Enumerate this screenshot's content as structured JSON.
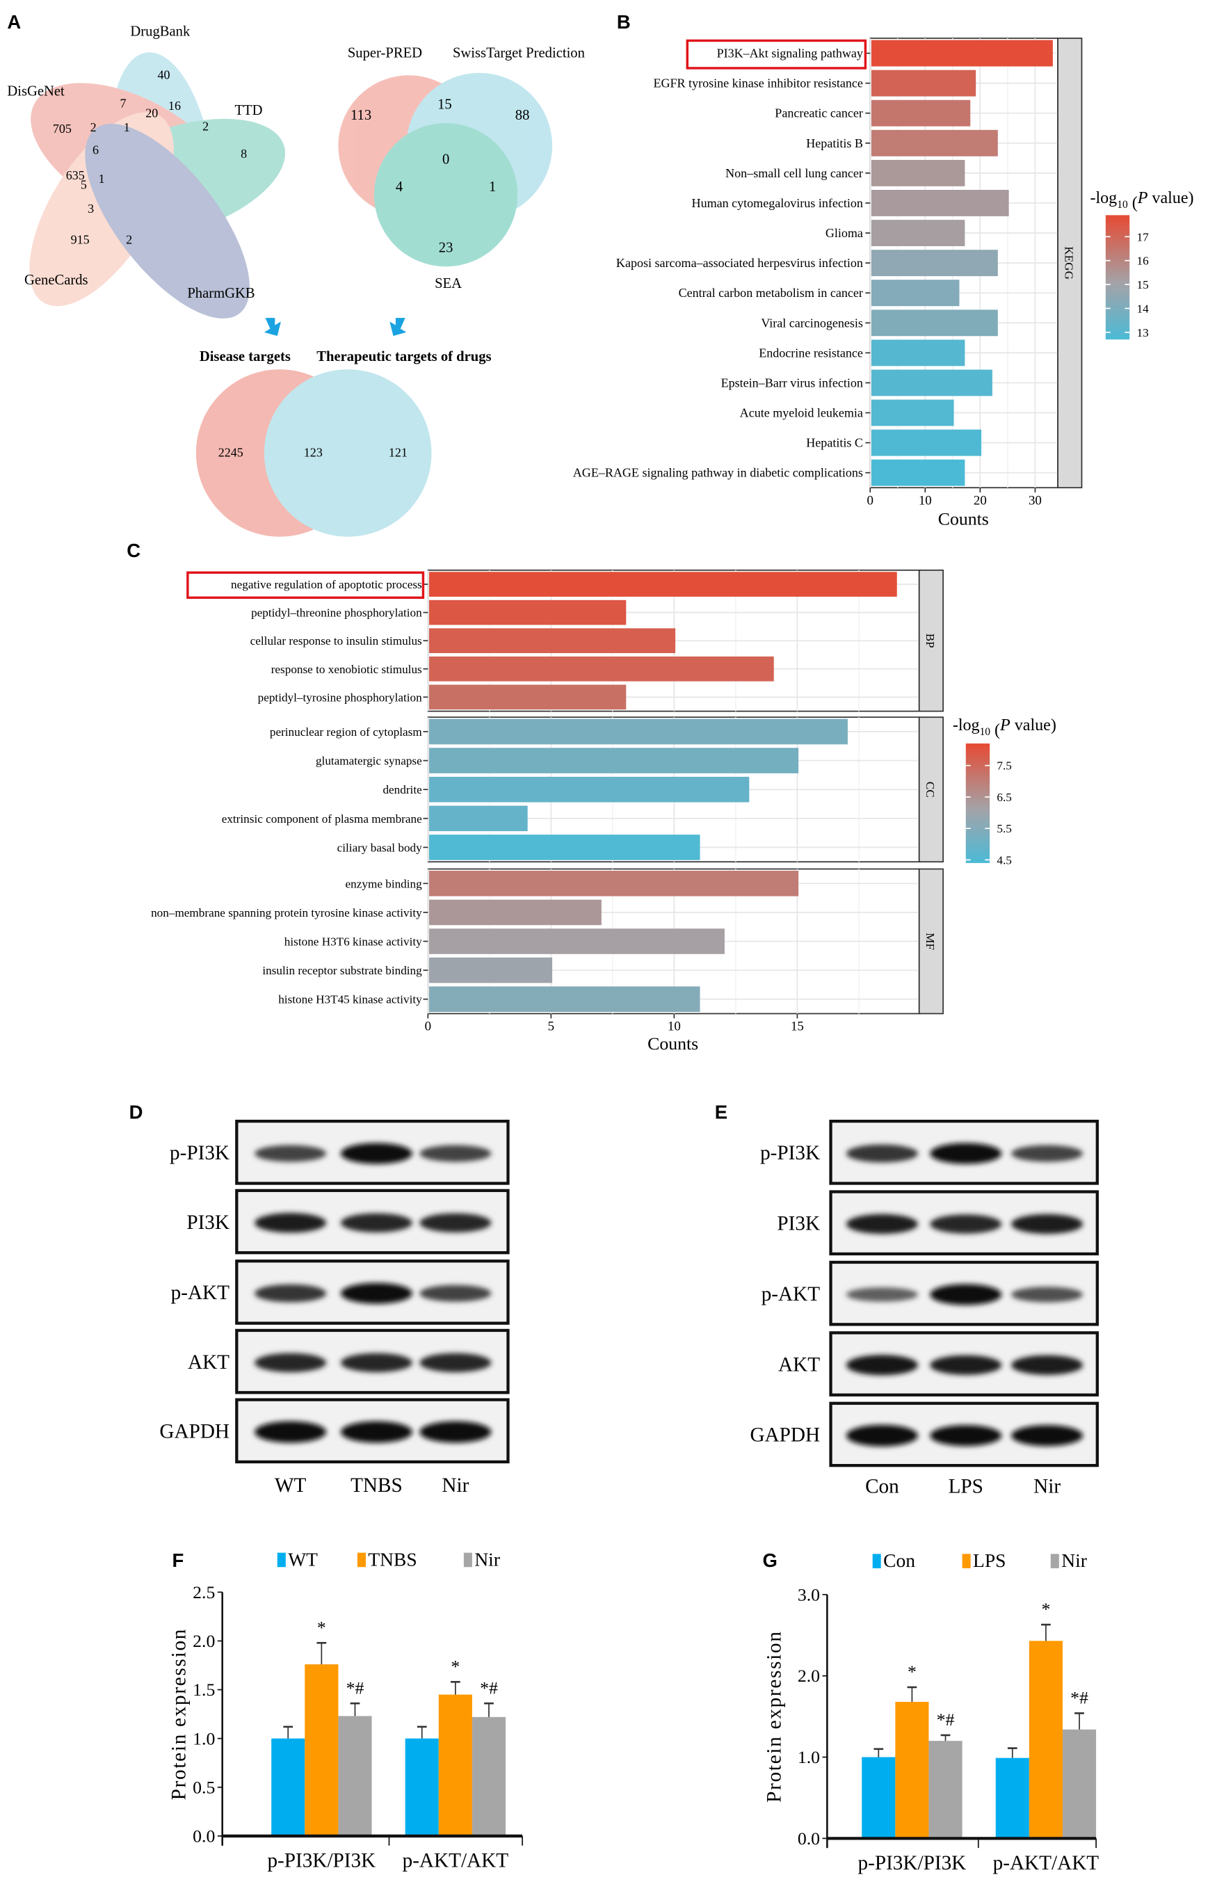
{
  "panels": {
    "a": "A",
    "b": "B",
    "c": "C",
    "d": "D",
    "e": "E",
    "f": "F",
    "g": "G"
  },
  "venn5": {
    "sets": [
      "DrugBank",
      "DisGeNet",
      "TTD",
      "GeneCards",
      "PharmGKB"
    ],
    "values": [
      "40",
      "7",
      "20",
      "16",
      "705",
      "2",
      "1",
      "2",
      "6",
      "8",
      "635",
      "1",
      "5",
      "3",
      "915",
      "2"
    ],
    "colors": [
      "#a8dbe8",
      "#f0a095",
      "#7fcfbf",
      "#f7c8b8",
      "#8f9bc0"
    ]
  },
  "venn3": {
    "sets": [
      "Super-PRED",
      "SwissTarget Prediction",
      "SEA"
    ],
    "values": [
      "113",
      "15",
      "88",
      "0",
      "4",
      "1",
      "23"
    ],
    "colors": [
      "#f2a59b",
      "#a8dce8",
      "#7ccfc0"
    ]
  },
  "venn2": {
    "sets": [
      "Disease targets",
      "Therapeutic targets of drugs"
    ],
    "values": [
      "2245",
      "123",
      "121"
    ],
    "colors": [
      "#f2a8a0",
      "#b2e0e9"
    ],
    "arrow_color": "#1aa3e0"
  },
  "chart_data": [
    {
      "id": "B",
      "type": "bar",
      "orientation": "horizontal",
      "facet": "KEGG",
      "categories": [
        "PI3K–Akt signaling pathway",
        "EGFR tyrosine kinase inhibitor resistance",
        "Pancreatic cancer",
        "Hepatitis B",
        "Non–small cell lung cancer",
        "Human cytomegalovirus infection",
        "Glioma",
        "Kaposi sarcoma–associated herpesvirus infection",
        "Central carbon metabolism in cancer",
        "Viral carcinogenesis",
        "Endocrine resistance",
        "Epstein–Barr virus infection",
        "Acute myeloid leukemia",
        "Hepatitis C",
        "AGE–RAGE signaling pathway in diabetic complications"
      ],
      "values": [
        33,
        19,
        18,
        23,
        17,
        25,
        17,
        23,
        16,
        23,
        17,
        22,
        15,
        20,
        17
      ],
      "neg_log10_p": [
        17.8,
        17.1,
        16.5,
        16.3,
        15.4,
        15.3,
        15.2,
        14.5,
        14.2,
        14.1,
        13.0,
        13.0,
        12.9,
        12.8,
        12.7
      ],
      "highlighted": "PI3K–Akt signaling pathway",
      "xlabel": "Counts",
      "xlim": [
        0,
        35
      ],
      "xticks": [
        "0",
        "10",
        "20",
        "30"
      ],
      "legend": {
        "title_prefix": "-log",
        "title_sub": "10",
        "title_suffix_open": " (",
        "title_italic": "P",
        "title_suffix": " value)",
        "ticks": [
          "17",
          "16",
          "15",
          "14",
          "13"
        ],
        "range": [
          12.7,
          17.9
        ],
        "placement": "right"
      },
      "colors": {
        "low": "#4bbad6",
        "mid": "#a3a3a8",
        "high": "#e64a33"
      }
    },
    {
      "id": "C",
      "type": "bar",
      "orientation": "horizontal",
      "facets": [
        {
          "name": "BP",
          "categories": [
            "negative regulation of apoptotic process",
            "peptidyl–threonine phosphorylation",
            "cellular response to insulin stimulus",
            "response to xenobiotic stimulus",
            "peptidyl–tyrosine phosphorylation"
          ],
          "values": [
            19,
            8,
            10,
            14,
            8
          ],
          "neg_log10_p": [
            8.1,
            7.9,
            7.7,
            7.6,
            7.3
          ]
        },
        {
          "name": "CC",
          "categories": [
            "perinuclear region of cytoplasm",
            "glutamatergic synapse",
            "dendrite",
            "extrinsic component of plasma membrane",
            "ciliary basal body"
          ],
          "values": [
            17,
            15,
            13,
            4,
            11
          ],
          "neg_log10_p": [
            5.3,
            5.2,
            4.9,
            4.9,
            4.5
          ]
        },
        {
          "name": "MF",
          "categories": [
            "enzyme binding",
            "non–membrane spanning protein tyrosine kinase activity",
            "histone H3T6 kinase activity",
            "insulin receptor substrate binding",
            "histone H3T45 kinase activity"
          ],
          "values": [
            15,
            7,
            12,
            5,
            11
          ],
          "neg_log10_p": [
            7.0,
            6.4,
            6.2,
            6.0,
            5.5
          ]
        }
      ],
      "highlighted": "negative regulation of apoptotic process",
      "xlabel": "Counts",
      "xlim": [
        0,
        20
      ],
      "xticks": [
        "0",
        "5",
        "10",
        "15"
      ],
      "legend": {
        "ticks": [
          "7.5",
          "6.5",
          "5.5",
          "4.5"
        ],
        "range": [
          4.4,
          8.2
        ],
        "placement": "right"
      }
    },
    {
      "id": "F",
      "type": "bar",
      "categories": [
        "p-PI3K/PI3K",
        "p-AKT/AKT"
      ],
      "series": [
        {
          "name": "WT",
          "color": "#00aeef",
          "values": [
            1.0,
            1.0
          ],
          "errors": [
            0.12,
            0.12
          ],
          "marks": [
            "",
            ""
          ]
        },
        {
          "name": "TNBS",
          "color": "#ff9900",
          "values": [
            1.76,
            1.45
          ],
          "errors": [
            0.22,
            0.13
          ],
          "marks": [
            "*",
            "*"
          ]
        },
        {
          "name": "Nir",
          "color": "#a6a6a6",
          "values": [
            1.23,
            1.22
          ],
          "errors": [
            0.13,
            0.14
          ],
          "marks": [
            "*#",
            "*#"
          ]
        }
      ],
      "ylabel": "Protein expression",
      "ylim": [
        0,
        2.5
      ],
      "yticks": [
        "0.0",
        "0.5",
        "1.0",
        "1.5",
        "2.0",
        "2.5"
      ],
      "legend_placement": "top"
    },
    {
      "id": "G",
      "type": "bar",
      "categories": [
        "p-PI3K/PI3K",
        "p-AKT/AKT"
      ],
      "series": [
        {
          "name": "Con",
          "color": "#00aeef",
          "values": [
            1.0,
            0.99
          ],
          "errors": [
            0.1,
            0.12
          ],
          "marks": [
            "",
            ""
          ]
        },
        {
          "name": "LPS",
          "color": "#ff9900",
          "values": [
            1.68,
            2.43
          ],
          "errors": [
            0.18,
            0.2
          ],
          "marks": [
            "*",
            "*"
          ]
        },
        {
          "name": "Nir",
          "color": "#a6a6a6",
          "values": [
            1.2,
            1.34
          ],
          "errors": [
            0.07,
            0.2
          ],
          "marks": [
            "*#",
            "*#"
          ]
        }
      ],
      "ylabel": "Protein expression",
      "ylim": [
        0,
        3.0
      ],
      "yticks": [
        "0.0",
        "1.0",
        "2.0",
        "3.0"
      ],
      "legend_placement": "top"
    }
  ],
  "blots": [
    {
      "id": "D",
      "rows": [
        "p-PI3K",
        "PI3K",
        "p-AKT",
        "AKT",
        "GAPDH"
      ],
      "lanes": [
        "WT",
        "TNBS",
        "Nir"
      ],
      "band_intensity": [
        [
          0.6,
          0.95,
          0.6
        ],
        [
          0.85,
          0.8,
          0.8
        ],
        [
          0.7,
          0.95,
          0.6
        ],
        [
          0.8,
          0.8,
          0.8
        ],
        [
          1.0,
          1.0,
          1.0
        ]
      ]
    },
    {
      "id": "E",
      "rows": [
        "p-PI3K",
        "PI3K",
        "p-AKT",
        "AKT",
        "GAPDH"
      ],
      "lanes": [
        "Con",
        "LPS",
        "Nir"
      ],
      "band_intensity": [
        [
          0.7,
          0.95,
          0.6
        ],
        [
          0.85,
          0.8,
          0.85
        ],
        [
          0.4,
          0.95,
          0.5
        ],
        [
          0.9,
          0.85,
          0.85
        ],
        [
          1.0,
          0.95,
          0.95
        ]
      ]
    }
  ]
}
